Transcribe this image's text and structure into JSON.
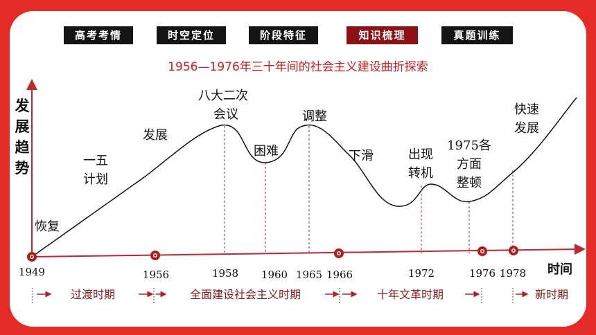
{
  "nav": {
    "tabs": [
      {
        "label": "高考考情",
        "active": false
      },
      {
        "label": "时空定位",
        "active": false
      },
      {
        "label": "阶段特征",
        "active": false
      },
      {
        "label": "知识梳理",
        "active": true
      },
      {
        "label": "真题训练",
        "active": false
      }
    ]
  },
  "title": "1956—1976年三十年间的社会主义建设曲折探索",
  "axes": {
    "y_label": "发展趋势",
    "x_label": "时间"
  },
  "years": [
    "1949",
    "1956",
    "1958",
    "1960",
    "1965",
    "1966",
    "1972",
    "1976",
    "1978"
  ],
  "stages": {
    "hui_fu": "恢复",
    "yi_wu": "一五计划",
    "fa_zhan": "发展",
    "ba_da": "八大二次会议",
    "kun_nan": "困难",
    "tiao_zheng": "调整",
    "xia_hua": "下滑",
    "zhuan_ji": "出现转机",
    "zheng_dun": "1975各方面整顿",
    "kuai_su": "快速发展"
  },
  "periods": [
    "过渡时期",
    "全面建设社会主义时期",
    "十年文革时期",
    "新时期"
  ],
  "colors": {
    "accent_red": "#e42b25",
    "dark_red": "#8e1115",
    "nav_black": "#141414"
  }
}
